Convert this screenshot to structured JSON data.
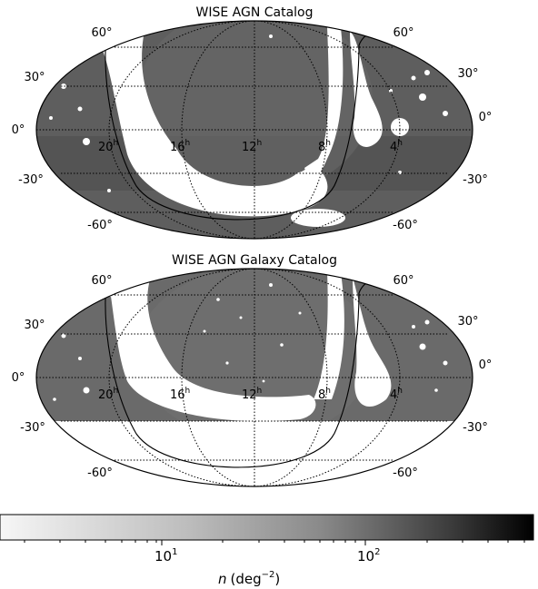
{
  "panels": [
    {
      "title": "WISE AGN Catalog",
      "dec_labels": [
        "60°",
        "30°",
        "0°",
        "-30°",
        "-60°"
      ],
      "ra_labels": [
        {
          "hour": "20",
          "sup": "h"
        },
        {
          "hour": "16",
          "sup": "h"
        },
        {
          "hour": "12",
          "sup": "h"
        },
        {
          "hour": "8",
          "sup": "h"
        },
        {
          "hour": "4",
          "sup": "h"
        }
      ],
      "southern_cutoff_deg": null
    },
    {
      "title": "WISE AGN Galaxy Catalog",
      "dec_labels": [
        "60°",
        "30°",
        "0°",
        "-30°",
        "-60°"
      ],
      "ra_labels": [
        {
          "hour": "20",
          "sup": "h"
        },
        {
          "hour": "16",
          "sup": "h"
        },
        {
          "hour": "12",
          "sup": "h"
        },
        {
          "hour": "8",
          "sup": "h"
        },
        {
          "hour": "4",
          "sup": "h"
        }
      ],
      "southern_cutoff_deg": -30
    }
  ],
  "projection": "Mollweide",
  "colorbar": {
    "scale": "log",
    "colormap": "grayscale (white to black)",
    "tick_labels": [
      {
        "base": "10",
        "exp": "1"
      },
      {
        "base": "10",
        "exp": "2"
      }
    ],
    "label_italic": "n",
    "label_unit": "(deg",
    "label_exp": "−2",
    "label_close": ")"
  },
  "colors": {
    "map_fill": "#5a5a5a",
    "masked": "#ffffff",
    "outline": "#000000"
  }
}
